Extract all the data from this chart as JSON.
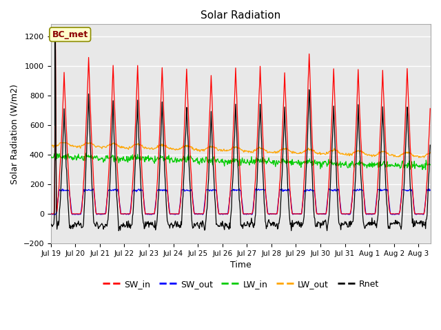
{
  "title": "Solar Radiation",
  "ylabel": "Solar Radiation (W/m2)",
  "xlabel": "Time",
  "ylim": [
    -200,
    1280
  ],
  "yticks": [
    -200,
    0,
    200,
    400,
    600,
    800,
    1000,
    1200
  ],
  "annotation_text": "BC_met",
  "x_tick_labels": [
    "Jul 19",
    "Jul 20",
    "Jul 21",
    "Jul 22",
    "Jul 23",
    "Jul 24",
    "Jul 25",
    "Jul 26",
    "Jul 27",
    "Jul 28",
    "Jul 29",
    "Jul 30",
    "Jul 31",
    "Aug 1",
    "Aug 2",
    "Aug 3"
  ],
  "colors": {
    "SW_in": "#FF0000",
    "SW_out": "#0000FF",
    "LW_in": "#00CC00",
    "LW_out": "#FFA500",
    "Rnet": "#000000"
  },
  "n_days": 15.5,
  "axes_facecolor": "#E8E8E8"
}
